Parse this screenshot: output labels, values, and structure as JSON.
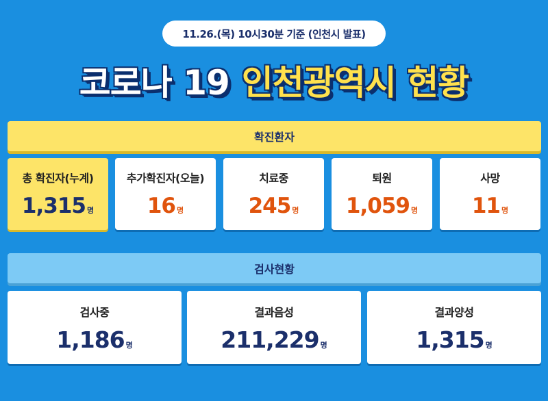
{
  "header": {
    "date_notice": "11.26.(목) 10시30분 기준 (인천시 발표)",
    "title_white": "코로나 19",
    "title_yellow": "인천광역시 현황"
  },
  "confirmed": {
    "section_title": "확진환자",
    "cards": [
      {
        "label": "총 확진자(누계)",
        "value": "1,315",
        "unit": "명"
      },
      {
        "label": "추가확진자(오늘)",
        "value": "16",
        "unit": "명"
      },
      {
        "label": "치료중",
        "value": "245",
        "unit": "명"
      },
      {
        "label": "퇴원",
        "value": "1,059",
        "unit": "명"
      },
      {
        "label": "사망",
        "value": "11",
        "unit": "명"
      }
    ]
  },
  "tests": {
    "section_title": "검사현황",
    "cards": [
      {
        "label": "검사중",
        "value": "1,186",
        "unit": "명"
      },
      {
        "label": "결과음성",
        "value": "211,229",
        "unit": "명"
      },
      {
        "label": "결과양성",
        "value": "1,315",
        "unit": "명"
      }
    ]
  },
  "colors": {
    "background": "#1a8fe0",
    "yellow": "#fde468",
    "light_blue": "#7dcaf5",
    "orange": "#e0540d",
    "navy": "#1b2f6b"
  }
}
